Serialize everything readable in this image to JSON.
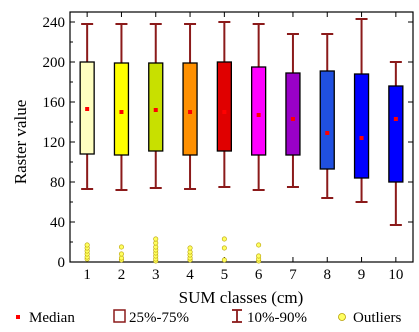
{
  "chart_data": {
    "type": "boxplot",
    "xlabel": "SUM classes (cm)",
    "ylabel": "Raster value",
    "ylim": [
      0,
      250
    ],
    "yticks": [
      0,
      40,
      80,
      120,
      160,
      200,
      240
    ],
    "categories": [
      "1",
      "2",
      "3",
      "4",
      "5",
      "6",
      "7",
      "8",
      "9",
      "10"
    ],
    "boxes": [
      {
        "category": "1",
        "color": "#ffffc0",
        "whisker_low": 73,
        "q1": 108,
        "median": 153,
        "q3": 200,
        "whisker_high": 238,
        "outliers": [
          3,
          5,
          8,
          11,
          14,
          17
        ]
      },
      {
        "category": "2",
        "color": "#ffff00",
        "whisker_low": 72,
        "q1": 107,
        "median": 150,
        "q3": 199,
        "whisker_high": 238,
        "outliers": [
          2,
          4,
          8,
          15
        ]
      },
      {
        "category": "3",
        "color": "#c8e000",
        "whisker_low": 74,
        "q1": 111,
        "median": 152,
        "q3": 199,
        "whisker_high": 238,
        "outliers": [
          1,
          3,
          6,
          9,
          12,
          15,
          19,
          23
        ]
      },
      {
        "category": "4",
        "color": "#ff9000",
        "whisker_low": 73,
        "q1": 107,
        "median": 150,
        "q3": 199,
        "whisker_high": 238,
        "outliers": [
          2,
          4,
          7,
          10,
          14
        ]
      },
      {
        "category": "5",
        "color": "#e00000",
        "whisker_low": 75,
        "q1": 111,
        "median": 150,
        "q3": 200,
        "whisker_high": 240,
        "outliers": [
          2,
          14,
          23
        ]
      },
      {
        "category": "6",
        "color": "#ff00ff",
        "whisker_low": 72,
        "q1": 107,
        "median": 147,
        "q3": 195,
        "whisker_high": 238,
        "outliers": [
          1,
          3,
          6,
          17
        ]
      },
      {
        "category": "7",
        "color": "#9a00c8",
        "whisker_low": 75,
        "q1": 107,
        "median": 143,
        "q3": 189,
        "whisker_high": 228,
        "outliers": []
      },
      {
        "category": "8",
        "color": "#2050e0",
        "whisker_low": 64,
        "q1": 93,
        "median": 129,
        "q3": 191,
        "whisker_high": 228,
        "outliers": []
      },
      {
        "category": "9",
        "color": "#0000ff",
        "whisker_low": 60,
        "q1": 84,
        "median": 124,
        "q3": 188,
        "whisker_high": 243,
        "outliers": []
      },
      {
        "category": "10",
        "color": "#0000ff",
        "whisker_low": 37,
        "q1": 80,
        "median": 143,
        "q3": 176,
        "whisker_high": 200,
        "outliers": []
      }
    ],
    "legend": [
      {
        "symbol": "median-square",
        "label": "Median"
      },
      {
        "symbol": "box",
        "label": "25%-75%"
      },
      {
        "symbol": "whisker",
        "label": "10%-90%"
      },
      {
        "symbol": "outlier-circle",
        "label": "Outliers"
      }
    ],
    "legend_position": "bottom",
    "grid": false,
    "colors": {
      "whisker": "#8b1a1a",
      "median": "#ff0000",
      "outlier_fill": "#ffff60",
      "outlier_stroke": "#b8a000"
    }
  }
}
